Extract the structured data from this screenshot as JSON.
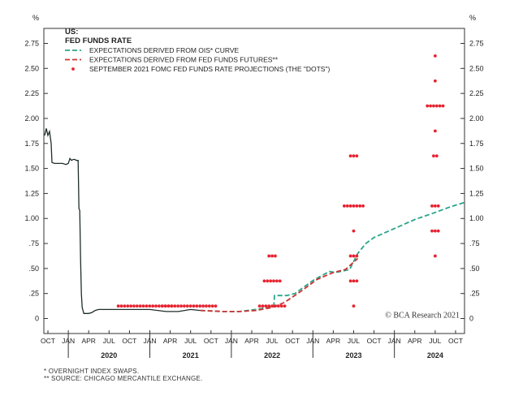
{
  "chart_data": {
    "type": "line",
    "title_lines": [
      "US:",
      "FED FUNDS RATE"
    ],
    "unit_left": "%",
    "unit_right": "%",
    "ylim": [
      -0.15,
      2.9
    ],
    "y_ticks": [
      0,
      0.25,
      0.5,
      0.75,
      1.0,
      1.25,
      1.5,
      1.75,
      2.0,
      2.25,
      2.5,
      2.75
    ],
    "y_tick_labels": [
      "0",
      ".25",
      ".50",
      ".75",
      "1.00",
      "1.25",
      "1.50",
      "1.75",
      "2.00",
      "2.25",
      "2.50",
      "2.75"
    ],
    "xlim": [
      2019.7,
      2024.86
    ],
    "x_ticks": [
      {
        "x": 2019.75,
        "label": "OCT"
      },
      {
        "x": 2020.0,
        "label": "JAN"
      },
      {
        "x": 2020.25,
        "label": "APR"
      },
      {
        "x": 2020.5,
        "label": "JUL"
      },
      {
        "x": 2020.75,
        "label": "OCT"
      },
      {
        "x": 2021.0,
        "label": "JAN"
      },
      {
        "x": 2021.25,
        "label": "APR"
      },
      {
        "x": 2021.5,
        "label": "JUL"
      },
      {
        "x": 2021.75,
        "label": "OCT"
      },
      {
        "x": 2022.0,
        "label": "JAN"
      },
      {
        "x": 2022.25,
        "label": "APR"
      },
      {
        "x": 2022.5,
        "label": "JUL"
      },
      {
        "x": 2022.75,
        "label": "OCT"
      },
      {
        "x": 2023.0,
        "label": "JAN"
      },
      {
        "x": 2023.25,
        "label": "APR"
      },
      {
        "x": 2023.5,
        "label": "JUL"
      },
      {
        "x": 2023.75,
        "label": "OCT"
      },
      {
        "x": 2024.0,
        "label": "JAN"
      },
      {
        "x": 2024.25,
        "label": "APR"
      },
      {
        "x": 2024.5,
        "label": "JUL"
      },
      {
        "x": 2024.75,
        "label": "OCT"
      }
    ],
    "year_labels": [
      {
        "x": 2020.5,
        "label": "2020"
      },
      {
        "x": 2021.5,
        "label": "2021"
      },
      {
        "x": 2022.5,
        "label": "2022"
      },
      {
        "x": 2023.5,
        "label": "2023"
      },
      {
        "x": 2024.5,
        "label": "2024"
      }
    ],
    "year_dividers": [
      2020.0,
      2021.0,
      2022.0,
      2023.0,
      2024.0
    ],
    "series": [
      {
        "name": "FED FUNDS RATE",
        "style": "solid",
        "color": "#1f2d2b",
        "points": [
          [
            2019.71,
            1.83
          ],
          [
            2019.73,
            1.9
          ],
          [
            2019.75,
            1.83
          ],
          [
            2019.77,
            1.87
          ],
          [
            2019.79,
            1.75
          ],
          [
            2019.8,
            1.56
          ],
          [
            2019.83,
            1.55
          ],
          [
            2019.87,
            1.55
          ],
          [
            2019.9,
            1.55
          ],
          [
            2019.93,
            1.55
          ],
          [
            2019.97,
            1.54
          ],
          [
            2020.0,
            1.55
          ],
          [
            2020.02,
            1.6
          ],
          [
            2020.04,
            1.58
          ],
          [
            2020.06,
            1.59
          ],
          [
            2020.08,
            1.59
          ],
          [
            2020.1,
            1.58
          ],
          [
            2020.12,
            1.58
          ],
          [
            2020.13,
            1.1
          ],
          [
            2020.14,
            1.08
          ],
          [
            2020.15,
            0.6
          ],
          [
            2020.16,
            0.25
          ],
          [
            2020.17,
            0.11
          ],
          [
            2020.19,
            0.05
          ],
          [
            2020.22,
            0.05
          ],
          [
            2020.25,
            0.05
          ],
          [
            2020.29,
            0.06
          ],
          [
            2020.33,
            0.08
          ],
          [
            2020.37,
            0.09
          ],
          [
            2020.45,
            0.09
          ],
          [
            2020.6,
            0.09
          ],
          [
            2020.8,
            0.09
          ],
          [
            2021.0,
            0.09
          ],
          [
            2021.2,
            0.07
          ],
          [
            2021.35,
            0.07
          ],
          [
            2021.5,
            0.09
          ],
          [
            2021.62,
            0.08
          ]
        ]
      },
      {
        "name": "EXPECTATIONS DERIVED FROM OIS* CURVE",
        "style": "dashed",
        "color": "#2aa58a",
        "points": [
          [
            2021.62,
            0.08
          ],
          [
            2021.9,
            0.07
          ],
          [
            2022.1,
            0.07
          ],
          [
            2022.3,
            0.09
          ],
          [
            2022.45,
            0.11
          ],
          [
            2022.52,
            0.12
          ],
          [
            2022.53,
            0.23
          ],
          [
            2022.68,
            0.23
          ],
          [
            2022.78,
            0.25
          ],
          [
            2023.0,
            0.38
          ],
          [
            2023.2,
            0.47
          ],
          [
            2023.28,
            0.46
          ],
          [
            2023.45,
            0.49
          ],
          [
            2023.55,
            0.65
          ],
          [
            2023.65,
            0.75
          ],
          [
            2023.75,
            0.81
          ],
          [
            2024.0,
            0.9
          ],
          [
            2024.25,
            0.99
          ],
          [
            2024.5,
            1.06
          ],
          [
            2024.7,
            1.12
          ],
          [
            2024.86,
            1.16
          ]
        ]
      },
      {
        "name": "EXPECTATIONS DERIVED FROM FED FUNDS FUTURES**",
        "style": "dashed",
        "color": "#cc3333",
        "points": [
          [
            2021.62,
            0.08
          ],
          [
            2021.9,
            0.07
          ],
          [
            2022.1,
            0.07
          ],
          [
            2022.3,
            0.08
          ],
          [
            2022.5,
            0.11
          ],
          [
            2022.65,
            0.16
          ],
          [
            2022.85,
            0.27
          ],
          [
            2023.05,
            0.39
          ],
          [
            2023.25,
            0.46
          ],
          [
            2023.4,
            0.49
          ],
          [
            2023.55,
            0.6
          ]
        ]
      }
    ],
    "dots": {
      "name": "SEPTEMBER 2021 FOMC FED FUNDS RATE PROJECTIONS (THE \"DOTS\")",
      "color": "#e8212e",
      "groups": [
        {
          "x": 2020.94,
          "y": 0.125,
          "count": 18
        },
        {
          "x": 2021.48,
          "y": 0.125,
          "count": 18
        },
        {
          "x": 2022.5,
          "y": 0.125,
          "count": 9
        },
        {
          "x": 2022.5,
          "y": 0.375,
          "count": 6
        },
        {
          "x": 2022.5,
          "y": 0.625,
          "count": 3
        },
        {
          "x": 2023.5,
          "y": 0.125,
          "count": 1
        },
        {
          "x": 2023.5,
          "y": 0.375,
          "count": 3
        },
        {
          "x": 2023.5,
          "y": 0.625,
          "count": 3
        },
        {
          "x": 2023.5,
          "y": 0.875,
          "count": 1
        },
        {
          "x": 2023.5,
          "y": 1.125,
          "count": 7
        },
        {
          "x": 2023.5,
          "y": 1.625,
          "count": 3
        },
        {
          "x": 2024.5,
          "y": 0.625,
          "count": 1
        },
        {
          "x": 2024.5,
          "y": 0.875,
          "count": 3
        },
        {
          "x": 2024.5,
          "y": 1.125,
          "count": 3
        },
        {
          "x": 2024.5,
          "y": 1.625,
          "count": 2
        },
        {
          "x": 2024.5,
          "y": 1.875,
          "count": 1
        },
        {
          "x": 2024.5,
          "y": 2.125,
          "count": 6
        },
        {
          "x": 2024.5,
          "y": 2.375,
          "count": 1
        },
        {
          "x": 2024.5,
          "y": 2.625,
          "count": 1
        }
      ]
    },
    "legend": [
      {
        "label": "EXPECTATIONS DERIVED FROM OIS* CURVE",
        "style": "dashed",
        "color": "#2aa58a"
      },
      {
        "label": "EXPECTATIONS DERIVED FROM FED FUNDS FUTURES**",
        "style": "dashed",
        "color": "#cc3333"
      },
      {
        "label": "SEPTEMBER 2021 FOMC FED FUNDS RATE PROJECTIONS (THE \"DOTS\")",
        "style": "dot",
        "color": "#e8212e"
      }
    ],
    "legend_placement": "top-left",
    "grid": false,
    "watermark": "© BCA Research 2021"
  },
  "footnotes": {
    "fn1": "*  OVERNIGHT INDEX SWAPS.",
    "fn2": "** SOURCE: CHICAGO MERCANTILE EXCHANGE."
  }
}
